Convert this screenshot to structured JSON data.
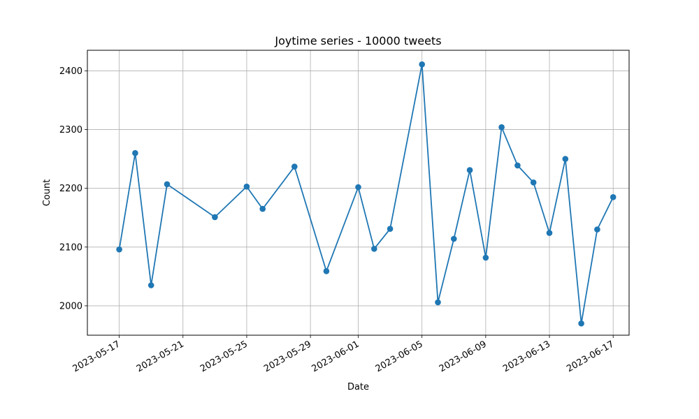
{
  "chart_data": {
    "type": "line",
    "title": "Joytime series - 10000 tweets",
    "xlabel": "Date",
    "ylabel": "Count",
    "grid": true,
    "legend": "none",
    "line_color": "#1f77b4",
    "marker": "circle",
    "xlim": [
      "2023-05-15",
      "2023-06-18"
    ],
    "ylim": [
      1950,
      2435
    ],
    "x_ticks": [
      "2023-05-17",
      "2023-05-21",
      "2023-05-25",
      "2023-05-29",
      "2023-06-01",
      "2023-06-05",
      "2023-06-09",
      "2023-06-13",
      "2023-06-17"
    ],
    "y_ticks": [
      2000,
      2100,
      2200,
      2300,
      2400
    ],
    "series": [
      {
        "x": [
          "2023-05-17",
          "2023-05-18",
          "2023-05-19",
          "2023-05-20",
          "2023-05-23",
          "2023-05-25",
          "2023-05-26",
          "2023-05-28",
          "2023-05-30",
          "2023-06-01",
          "2023-06-02",
          "2023-06-03",
          "2023-06-05",
          "2023-06-06",
          "2023-06-07",
          "2023-06-08",
          "2023-06-09",
          "2023-06-10",
          "2023-06-11",
          "2023-06-12",
          "2023-06-13",
          "2023-06-14",
          "2023-06-15",
          "2023-06-16",
          "2023-06-17"
        ],
        "values": [
          2096,
          2260,
          2035,
          2207,
          2151,
          2203,
          2165,
          2237,
          2059,
          2202,
          2097,
          2131,
          2411,
          2006,
          2114,
          2231,
          2082,
          2304,
          2239,
          2210,
          2124,
          2250,
          1970,
          2130,
          2185
        ]
      }
    ]
  }
}
